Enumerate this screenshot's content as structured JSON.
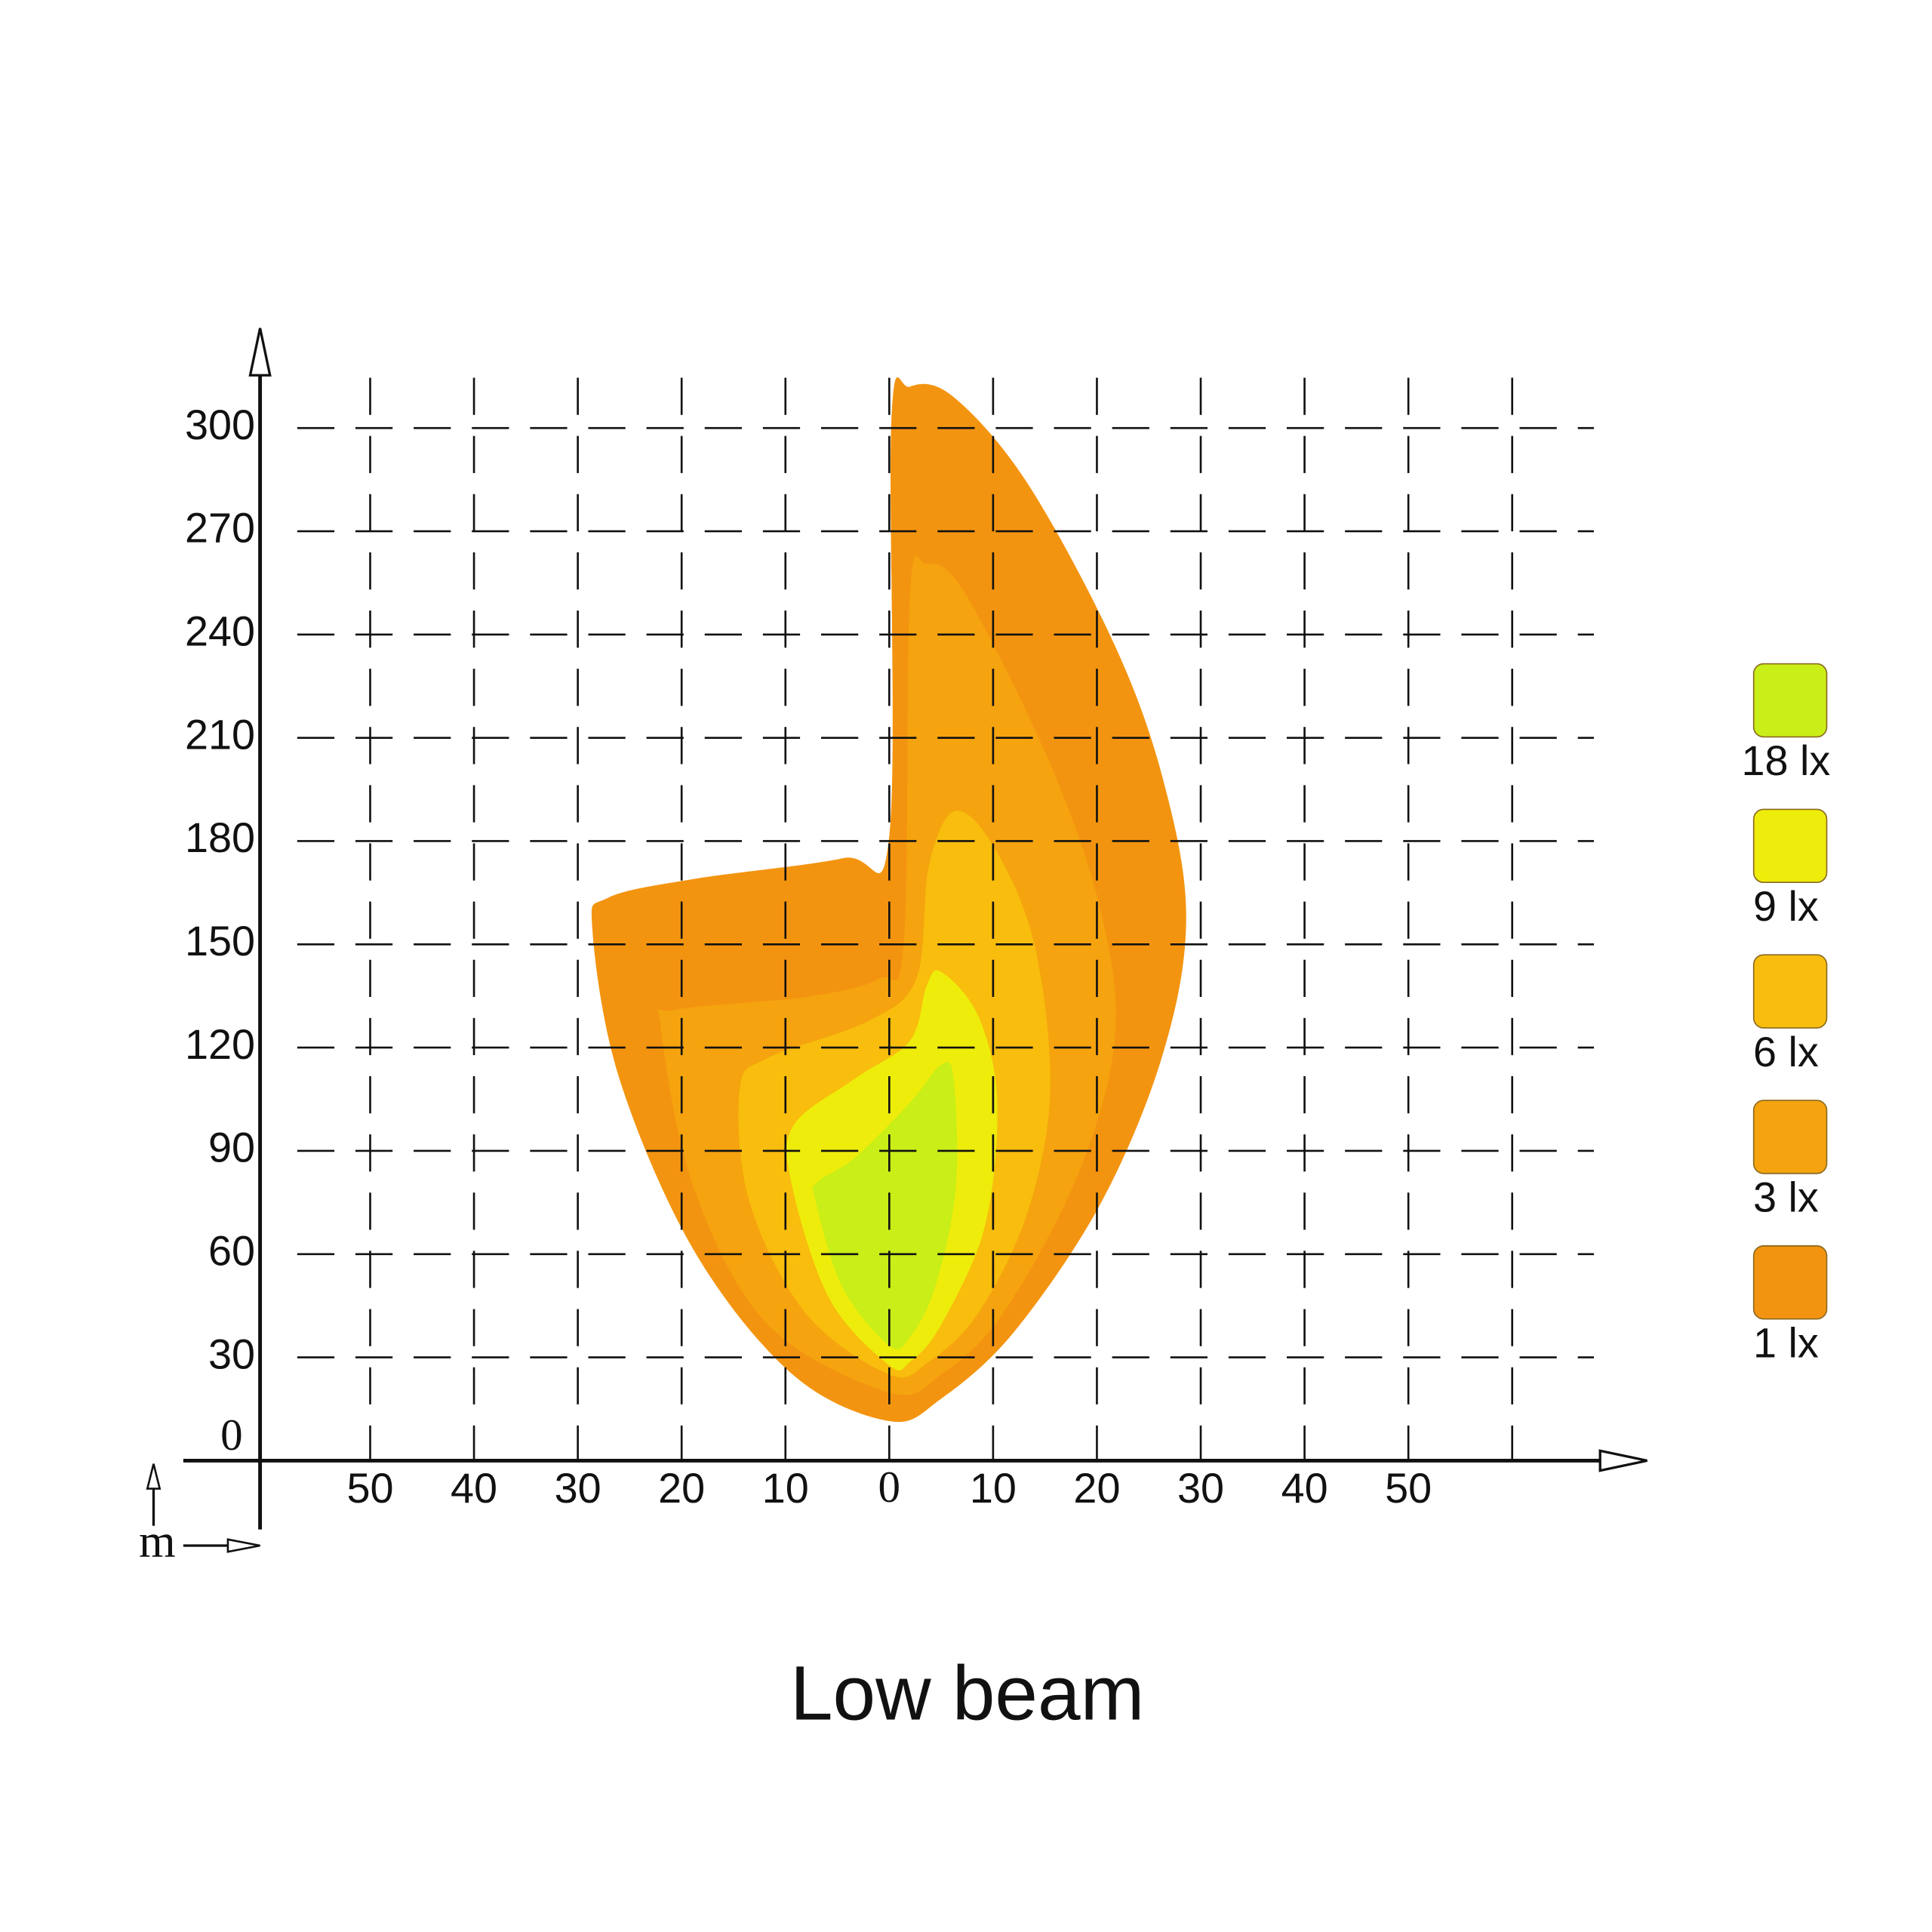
{
  "chart_data": {
    "type": "isolux",
    "title": "Low beam",
    "unit_label": "m",
    "xlim": [
      -68,
      73
    ],
    "ylim": [
      -20,
      329
    ],
    "xticks": [
      {
        "value": -50,
        "label": "50"
      },
      {
        "value": -40,
        "label": "40"
      },
      {
        "value": -30,
        "label": "30"
      },
      {
        "value": -20,
        "label": "20"
      },
      {
        "value": -10,
        "label": "10"
      },
      0,
      10,
      20,
      30,
      40,
      50
    ],
    "xgrid": [
      -50,
      -40,
      -30,
      -20,
      -10,
      0,
      10,
      20,
      30,
      40,
      50,
      60
    ],
    "yticks": [
      0,
      30,
      60,
      90,
      120,
      150,
      180,
      210,
      240,
      270,
      300
    ],
    "grid": true,
    "legend": "right",
    "series": [
      {
        "name": "1 lx",
        "color": "#f39410",
        "x": [
          0,
          -9.3,
          -18.8,
          -26,
          -28.6,
          -27.1,
          -18.8,
          -4.5,
          0,
          0.2,
          2,
          6.2,
          13.3,
          21.7,
          26.4,
          28.6,
          26.4,
          20.5,
          12.1,
          5
        ],
        "y": [
          11.5,
          25,
          61,
          111,
          154.5,
          163.5,
          169,
          175,
          181.5,
          302,
          312,
          309,
          284,
          237,
          197.6,
          158,
          118.6,
          75.5,
          37.7,
          18
        ]
      },
      {
        "name": "3 lx",
        "color": "#f5a30f",
        "x": [
          0,
          -11.7,
          -18.8,
          -22,
          -20.6,
          -8.1,
          -1,
          1.4,
          2,
          3.6,
          7.4,
          15.7,
          20.5,
          21.7,
          18.1,
          11,
          5
        ],
        "y": [
          19.8,
          39.5,
          79,
          125.8,
          131,
          134.7,
          140,
          151,
          251.5,
          260.5,
          251.5,
          201,
          158,
          122,
          82.6,
          43,
          25
        ]
      },
      {
        "name": "6 lx",
        "color": "#f8bd0d",
        "x": [
          0,
          -8.1,
          -13.5,
          -14.4,
          -11.7,
          -2.1,
          2.6,
          3.8,
          6.2,
          9.8,
          13.9,
          15.5,
          13.3,
          8.6,
          3.8
        ],
        "y": [
          25,
          43,
          75.5,
          108,
          117,
          127.6,
          140,
          172.5,
          188.6,
          179.7,
          151,
          108,
          72,
          43,
          28.7
        ]
      },
      {
        "name": "9 lx",
        "color": "#eeec0b",
        "x": [
          0,
          -5.7,
          -9.3,
          -9.3,
          -3.3,
          2,
          3.6,
          5,
          8.6,
          10.4,
          9.2,
          5,
          2
        ],
        "y": [
          27.7,
          46.7,
          79,
          97,
          111,
          122,
          138,
          142,
          129,
          104,
          68,
          39.5,
          28.7
        ]
      },
      {
        "name": "18 lx",
        "color": "#c9ee18",
        "x": [
          0,
          -4.5,
          -7.1,
          -6.9,
          -3.3,
          2,
          5,
          6.2,
          6.4,
          4.4,
          2
        ],
        "y": [
          33.4,
          50.3,
          75.5,
          81,
          88,
          104,
          115,
          111,
          79,
          50.3,
          36
        ]
      }
    ]
  }
}
